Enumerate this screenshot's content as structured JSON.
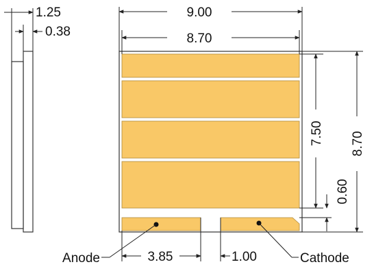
{
  "dimensions": {
    "total_thickness": "1.25",
    "pad_thickness": "0.38",
    "overall_width": "9.00",
    "inner_width": "8.70",
    "emitter_height": "7.50",
    "overall_height": "8.70",
    "gap_height": "0.60",
    "anode_width": "3.85",
    "pad_gap": "1.00"
  },
  "labels": {
    "anode": "Anode",
    "cathode": "Cathode"
  },
  "colors": {
    "pad_fill": "#f9c867",
    "outline": "#333333"
  }
}
